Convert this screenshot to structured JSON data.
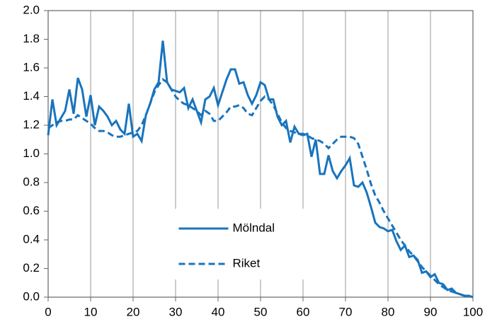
{
  "chart_data": {
    "type": "line",
    "x": [
      0,
      1,
      2,
      3,
      4,
      5,
      6,
      7,
      8,
      9,
      10,
      11,
      12,
      13,
      14,
      15,
      16,
      17,
      18,
      19,
      20,
      21,
      22,
      23,
      24,
      25,
      26,
      27,
      28,
      29,
      30,
      31,
      32,
      33,
      34,
      35,
      36,
      37,
      38,
      39,
      40,
      41,
      42,
      43,
      44,
      45,
      46,
      47,
      48,
      49,
      50,
      51,
      52,
      53,
      54,
      55,
      56,
      57,
      58,
      59,
      60,
      61,
      62,
      63,
      64,
      65,
      66,
      67,
      68,
      69,
      70,
      71,
      72,
      73,
      74,
      75,
      76,
      77,
      78,
      79,
      80,
      81,
      82,
      83,
      84,
      85,
      86,
      87,
      88,
      89,
      90,
      91,
      92,
      93,
      94,
      95,
      96,
      97,
      98,
      99,
      100
    ],
    "series": [
      {
        "name": "Mölndal",
        "color": "#1874be",
        "style": "solid",
        "values": [
          1.13,
          1.38,
          1.2,
          1.25,
          1.3,
          1.45,
          1.28,
          1.53,
          1.45,
          1.26,
          1.41,
          1.2,
          1.33,
          1.3,
          1.26,
          1.2,
          1.23,
          1.17,
          1.14,
          1.35,
          1.12,
          1.14,
          1.09,
          1.27,
          1.35,
          1.45,
          1.5,
          1.79,
          1.5,
          1.45,
          1.44,
          1.43,
          1.46,
          1.32,
          1.38,
          1.3,
          1.22,
          1.38,
          1.4,
          1.46,
          1.34,
          1.43,
          1.52,
          1.59,
          1.59,
          1.49,
          1.5,
          1.41,
          1.35,
          1.41,
          1.5,
          1.48,
          1.38,
          1.38,
          1.26,
          1.2,
          1.23,
          1.08,
          1.19,
          1.14,
          1.13,
          1.14,
          0.98,
          1.1,
          0.86,
          0.86,
          0.99,
          0.88,
          0.83,
          0.88,
          0.92,
          0.97,
          0.78,
          0.77,
          0.8,
          0.73,
          0.63,
          0.52,
          0.49,
          0.48,
          0.46,
          0.47,
          0.39,
          0.33,
          0.36,
          0.28,
          0.29,
          0.26,
          0.17,
          0.18,
          0.14,
          0.16,
          0.1,
          0.09,
          0.05,
          0.06,
          0.03,
          0.02,
          0.01,
          0.01,
          0.0
        ]
      },
      {
        "name": "Riket",
        "color": "#1874be",
        "style": "dashed",
        "values": [
          1.18,
          1.2,
          1.22,
          1.23,
          1.23,
          1.24,
          1.24,
          1.27,
          1.25,
          1.23,
          1.21,
          1.18,
          1.16,
          1.16,
          1.15,
          1.13,
          1.12,
          1.12,
          1.13,
          1.14,
          1.15,
          1.16,
          1.2,
          1.27,
          1.35,
          1.43,
          1.48,
          1.52,
          1.5,
          1.45,
          1.4,
          1.37,
          1.35,
          1.34,
          1.32,
          1.3,
          1.27,
          1.3,
          1.28,
          1.23,
          1.23,
          1.26,
          1.29,
          1.33,
          1.33,
          1.34,
          1.32,
          1.28,
          1.27,
          1.32,
          1.37,
          1.4,
          1.38,
          1.34,
          1.28,
          1.22,
          1.18,
          1.16,
          1.15,
          1.14,
          1.14,
          1.13,
          1.11,
          1.1,
          1.09,
          1.07,
          1.04,
          1.07,
          1.1,
          1.12,
          1.12,
          1.12,
          1.11,
          1.07,
          0.98,
          0.89,
          0.79,
          0.71,
          0.66,
          0.6,
          0.55,
          0.5,
          0.45,
          0.4,
          0.36,
          0.32,
          0.29,
          0.25,
          0.21,
          0.18,
          0.15,
          0.12,
          0.09,
          0.07,
          0.05,
          0.04,
          0.03,
          0.02,
          0.01,
          0.01,
          0.0
        ]
      }
    ],
    "xlim": [
      0,
      100
    ],
    "xticks": [
      0,
      10,
      20,
      30,
      40,
      50,
      60,
      70,
      80,
      90,
      100
    ],
    "ylim": [
      0,
      2
    ],
    "yticks": [
      {
        "value": 0,
        "label": "0.0"
      },
      0.2,
      0.4,
      0.6,
      0.8,
      {
        "value": 1,
        "label": "1.0"
      },
      1.2,
      1.4,
      1.6,
      1.8,
      {
        "value": 2,
        "label": "2.0"
      }
    ],
    "grid": "x",
    "legend": "lower center"
  }
}
